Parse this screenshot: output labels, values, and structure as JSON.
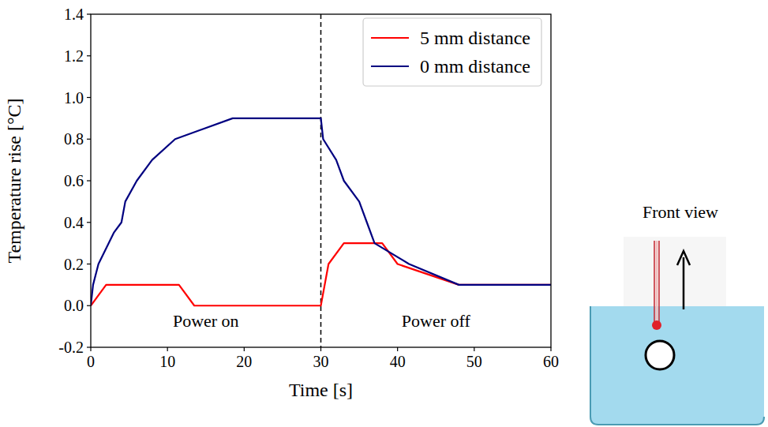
{
  "chart_data": {
    "type": "line",
    "x_label": "Time [s]",
    "y_label": "Temperature rise [°C]",
    "xlim": [
      0,
      60
    ],
    "ylim": [
      -0.2,
      1.4
    ],
    "xticks": [
      0,
      10,
      20,
      30,
      40,
      50,
      60
    ],
    "yticks": [
      -0.2,
      {
        "value": 0,
        "label": "0.0"
      },
      0.2,
      0.4,
      0.6,
      0.8,
      {
        "value": 1,
        "label": "1.0"
      },
      1.2,
      1.4
    ],
    "grid": false,
    "legend": "upper right",
    "vertical_line": {
      "x": 30,
      "line_style": "dashed"
    },
    "annotations": [
      {
        "text": "Power on",
        "x": 15,
        "y": -0.07
      },
      {
        "text": "Power off",
        "x": 45,
        "y": -0.07
      }
    ],
    "series": [
      {
        "name": "5 mm distance",
        "color": "#ff0000",
        "x": [
          0,
          2,
          11.5,
          13.5,
          30,
          31,
          33,
          38,
          40,
          48,
          60
        ],
        "values": [
          0,
          0.1,
          0.1,
          0,
          0,
          0.2,
          0.3,
          0.3,
          0.2,
          0.1,
          0.1
        ]
      },
      {
        "name": "0 mm distance",
        "color": "#000080",
        "x": [
          0,
          0.3,
          1,
          3,
          4,
          4.5,
          6,
          8,
          11,
          18.5,
          30,
          30.3,
          32,
          33,
          35,
          36,
          37,
          41.5,
          48,
          60
        ],
        "values": [
          0,
          0.1,
          0.2,
          0.35,
          0.4,
          0.5,
          0.6,
          0.7,
          0.8,
          0.9,
          0.9,
          0.8,
          0.7,
          0.6,
          0.5,
          0.4,
          0.3,
          0.2,
          0.1,
          0.1
        ]
      }
    ]
  },
  "inset": {
    "title": "Front view"
  }
}
